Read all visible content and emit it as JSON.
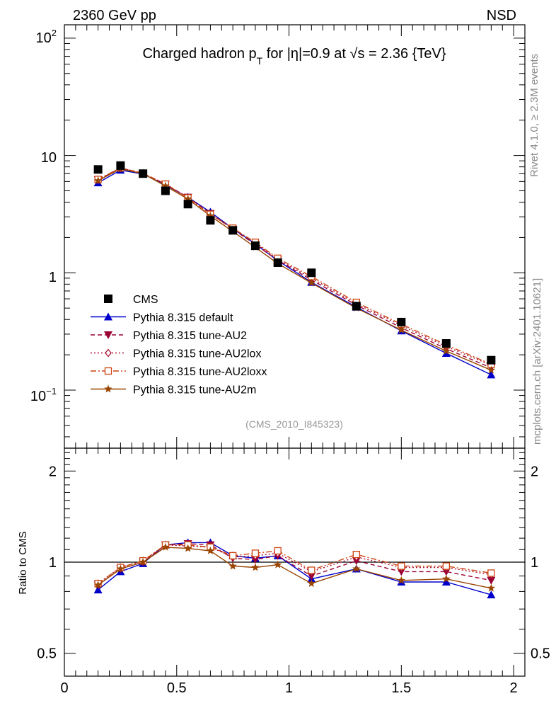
{
  "header": {
    "left": "2360 GeV pp",
    "right": "NSD"
  },
  "title": {
    "pre": "Charged hadron p",
    "sub": "T",
    "post": " for |η|=0.9 at √s = 2.36 {TeV}"
  },
  "side": {
    "rivet": "Rivet 4.1.0, ≥ 2.3M events",
    "mcplots": "mcplots.cern.ch [arXiv:2401.10621]"
  },
  "analysis_tag": "(CMS_2010_I845323)",
  "colors": {
    "cms": "#000000",
    "default": "#0000cc",
    "au2": "#990033",
    "au2lox": "#aa1133",
    "au2loxx": "#cc4411",
    "au2m": "#994400"
  },
  "chart_data": [
    {
      "type": "line",
      "panel": "main",
      "yscale": "log",
      "xlim": [
        0,
        2.05
      ],
      "ylim": [
        0.032,
        130
      ],
      "ytick_labels": [
        "10^2",
        "10",
        "1",
        "10^-1"
      ],
      "x": [
        0.15,
        0.25,
        0.35,
        0.45,
        0.55,
        0.65,
        0.75,
        0.85,
        0.95,
        1.1,
        1.3,
        1.5,
        1.7,
        1.9
      ],
      "series": [
        {
          "name": "CMS",
          "key": "cms",
          "marker": "square",
          "style": "none",
          "values": [
            7.6,
            8.2,
            7.0,
            5.0,
            3.85,
            2.8,
            2.3,
            1.7,
            1.22,
            1.0,
            0.52,
            0.38,
            0.25,
            0.18
          ]
        },
        {
          "name": "Pythia 8.315 default",
          "key": "default",
          "marker": "triangle-up",
          "style": "solid",
          "values": [
            5.85,
            7.5,
            6.95,
            5.6,
            4.4,
            3.3,
            2.38,
            1.76,
            1.27,
            0.83,
            0.51,
            0.32,
            0.206,
            0.135
          ]
        },
        {
          "name": "Pythia 8.315 tune-AU2",
          "key": "au2",
          "marker": "triangle-down",
          "style": "dashed",
          "values": [
            6.2,
            7.8,
            7.05,
            5.7,
            4.4,
            3.2,
            2.35,
            1.74,
            1.28,
            0.87,
            0.53,
            0.34,
            0.225,
            0.155
          ]
        },
        {
          "name": "Pythia 8.315 tune-AU2lox",
          "key": "au2lox",
          "marker": "diamond-open",
          "style": "dotted",
          "values": [
            6.2,
            7.8,
            7.05,
            5.7,
            4.35,
            3.15,
            2.38,
            1.79,
            1.3,
            0.9,
            0.545,
            0.355,
            0.235,
            0.163
          ]
        },
        {
          "name": "Pythia 8.315 tune-AU2loxx",
          "key": "au2loxx",
          "marker": "square-open",
          "style": "dashdot",
          "values": [
            6.25,
            7.85,
            7.05,
            5.7,
            4.35,
            3.15,
            2.4,
            1.82,
            1.33,
            0.93,
            0.56,
            0.365,
            0.243,
            0.166
          ]
        },
        {
          "name": "Pythia 8.315 tune-AU2m",
          "key": "au2m",
          "marker": "star",
          "style": "solid",
          "values": [
            6.1,
            7.7,
            7.0,
            5.5,
            4.25,
            3.05,
            2.25,
            1.65,
            1.2,
            0.82,
            0.5,
            0.325,
            0.215,
            0.148
          ]
        }
      ],
      "legend": "bottom-left"
    },
    {
      "type": "line",
      "panel": "ratio",
      "yscale": "log",
      "ylabel": "Ratio to CMS",
      "xlim": [
        0,
        2.05
      ],
      "ylim": [
        0.42,
        2.38
      ],
      "yticks": [
        0.5,
        1,
        2
      ],
      "ytick_labels": [
        "0.5",
        "1",
        "2"
      ],
      "xticks": [
        0,
        0.5,
        1,
        1.5,
        2
      ],
      "xtick_labels": [
        "0",
        "0.5",
        "1",
        "1.5",
        "2"
      ],
      "reference_line": 1,
      "x": [
        0.15,
        0.25,
        0.35,
        0.45,
        0.55,
        0.65,
        0.75,
        0.85,
        0.95,
        1.1,
        1.3,
        1.5,
        1.7,
        1.9
      ],
      "series": [
        {
          "name": "Pythia 8.315 default",
          "key": "default",
          "values": [
            0.81,
            0.93,
            0.99,
            1.14,
            1.16,
            1.16,
            1.05,
            1.03,
            1.05,
            0.88,
            0.95,
            0.86,
            0.86,
            0.78
          ]
        },
        {
          "name": "Pythia 8.315 tune-AU2",
          "key": "au2",
          "values": [
            0.84,
            0.95,
            1.0,
            1.14,
            1.15,
            1.14,
            1.03,
            1.02,
            1.05,
            0.9,
            1.01,
            0.93,
            0.93,
            0.87
          ]
        },
        {
          "name": "Pythia 8.315 tune-AU2lox",
          "key": "au2lox",
          "values": [
            0.85,
            0.96,
            1.01,
            1.14,
            1.13,
            1.12,
            1.04,
            1.05,
            1.07,
            0.93,
            1.04,
            0.96,
            0.96,
            0.91
          ]
        },
        {
          "name": "Pythia 8.315 tune-AU2loxx",
          "key": "au2loxx",
          "values": [
            0.85,
            0.96,
            1.01,
            1.14,
            1.14,
            1.12,
            1.05,
            1.07,
            1.09,
            0.94,
            1.06,
            0.97,
            0.97,
            0.92
          ]
        },
        {
          "name": "Pythia 8.315 tune-AU2m",
          "key": "au2m",
          "values": [
            0.84,
            0.95,
            1.0,
            1.12,
            1.11,
            1.09,
            0.97,
            0.96,
            0.98,
            0.85,
            0.95,
            0.87,
            0.88,
            0.82
          ]
        }
      ]
    }
  ]
}
